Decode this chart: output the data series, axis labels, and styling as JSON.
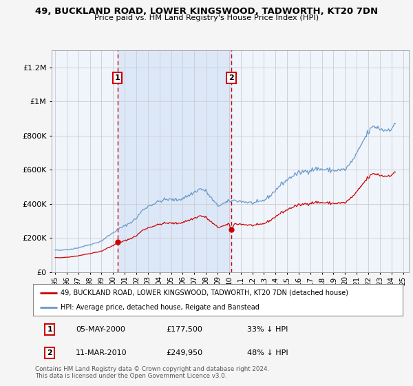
{
  "title": "49, BUCKLAND ROAD, LOWER KINGSWOOD, TADWORTH, KT20 7DN",
  "subtitle": "Price paid vs. HM Land Registry's House Price Index (HPI)",
  "ylim": [
    0,
    1300000
  ],
  "yticks": [
    0,
    200000,
    400000,
    600000,
    800000,
    1000000,
    1200000
  ],
  "background_color": "#f5f5f5",
  "plot_bg_color": "#f0f4fb",
  "shade_color": "#dce8f8",
  "grid_color": "#cccccc",
  "hpi_color": "#6699cc",
  "price_color": "#cc0000",
  "dashed_line_color": "#cc0000",
  "sale1_year": 2000.37,
  "sale1_price": 177500,
  "sale1_label": "1",
  "sale1_date": "05-MAY-2000",
  "sale1_pct": "33%",
  "sale2_year": 2010.19,
  "sale2_price": 249950,
  "sale2_label": "2",
  "sale2_date": "11-MAR-2010",
  "sale2_pct": "48%",
  "legend_entry1": "49, BUCKLAND ROAD, LOWER KINGSWOOD, TADWORTH, KT20 7DN (detached house)",
  "legend_entry2": "HPI: Average price, detached house, Reigate and Banstead",
  "footer": "Contains HM Land Registry data © Crown copyright and database right 2024.\nThis data is licensed under the Open Government Licence v3.0.",
  "xlim_left": 1994.7,
  "xlim_right": 2025.5,
  "xtick_years": [
    1995,
    1996,
    1997,
    1998,
    1999,
    2000,
    2001,
    2002,
    2003,
    2004,
    2005,
    2006,
    2007,
    2008,
    2009,
    2010,
    2011,
    2012,
    2013,
    2014,
    2015,
    2016,
    2017,
    2018,
    2019,
    2020,
    2021,
    2022,
    2023,
    2024,
    2025
  ]
}
